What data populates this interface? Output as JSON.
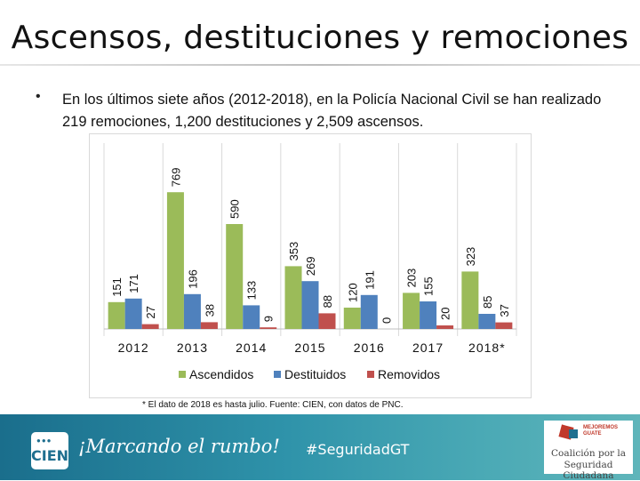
{
  "slide": {
    "title": "Ascensos, destituciones y remociones",
    "bullet": "En los últimos siete años (2012-2018), en la Policía Nacional Civil se han realizado 219 remociones, 1,200 destituciones y 2,509 ascensos.",
    "footnote": "* El dato de 2018 es hasta julio. Fuente: CIEN, con datos de PNC."
  },
  "footer": {
    "logo_text": "CIEN",
    "logo_dots": "●●●",
    "tagline": "¡Marcando el rumbo!",
    "hashtag": "#SeguridadGT",
    "partner_tag": "MEJOREMOS GUATE",
    "partner_line1": "Coalición por la",
    "partner_line2": "Seguridad Ciudadana"
  },
  "colors": {
    "ascendidos": "#9bbb59",
    "destituidos": "#4f81bd",
    "removidos": "#c0504d",
    "footer_start": "#1a6e8c",
    "footer_end": "#5fb5ba"
  },
  "chart_data": {
    "type": "bar",
    "title": "",
    "xlabel": "",
    "ylabel": "",
    "categories": [
      "2012",
      "2013",
      "2014",
      "2015",
      "2016",
      "2017",
      "2018*"
    ],
    "series": [
      {
        "name": "Ascendidos",
        "values": [
          151,
          769,
          590,
          353,
          120,
          203,
          323
        ]
      },
      {
        "name": "Destituidos",
        "values": [
          171,
          196,
          133,
          269,
          191,
          155,
          85
        ]
      },
      {
        "name": "Removidos",
        "values": [
          27,
          38,
          9,
          88,
          0,
          20,
          37
        ]
      }
    ],
    "ylim": [
      0,
      800
    ],
    "legend": "bottom",
    "grid": false
  }
}
